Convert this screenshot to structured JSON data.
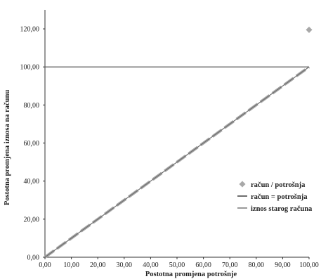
{
  "chart_data": {
    "type": "scatter",
    "xlabel": "Postotna promjena potrošnje",
    "ylabel": "Postotna promjena iznosa na računu",
    "xlim": [
      0,
      100
    ],
    "ylim": [
      0,
      130
    ],
    "x_ticks": [
      "0,00",
      "10,00",
      "20,00",
      "30,00",
      "40,00",
      "50,00",
      "60,00",
      "70,00",
      "80,00",
      "90,00",
      "100,00"
    ],
    "y_ticks": [
      "0,00",
      "20,00",
      "40,00",
      "60,00",
      "80,00",
      "100,00",
      "120,00"
    ],
    "series": [
      {
        "name": "račun / potrošnja",
        "kind": "marker",
        "color": "#a8a8a8",
        "x": [
          0,
          10,
          20,
          30,
          40,
          50,
          60,
          70,
          80,
          90,
          100
        ],
        "y": [
          0,
          10,
          20,
          30,
          40,
          50,
          60,
          70,
          80,
          90,
          119.5
        ]
      },
      {
        "name": "račun = potrošnja",
        "kind": "line",
        "color": "#6e6e6e",
        "x": [
          0,
          100
        ],
        "y": [
          0,
          100
        ]
      },
      {
        "name": "iznos starog računa",
        "kind": "line",
        "color": "#9a9a9a",
        "x": [
          0,
          100
        ],
        "y": [
          100,
          100
        ]
      }
    ],
    "legend_position": "right"
  }
}
